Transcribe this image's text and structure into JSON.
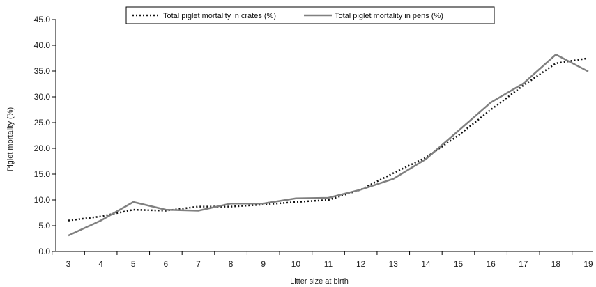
{
  "chart_data": {
    "type": "line",
    "title": "",
    "xlabel": "Litter size at birth",
    "ylabel": "Piglet mortality (%)",
    "ylim": [
      0,
      45
    ],
    "yticks": [
      "0.0",
      "5.0",
      "10.0",
      "15.0",
      "20.0",
      "25.0",
      "30.0",
      "35.0",
      "40.0",
      "45.0"
    ],
    "categories": [
      "3",
      "4",
      "5",
      "6",
      "7",
      "8",
      "9",
      "10",
      "11",
      "12",
      "13",
      "14",
      "15",
      "16",
      "17",
      "18",
      "19"
    ],
    "grid": false,
    "legend_position": "top",
    "series": [
      {
        "name": "Total piglet mortality in crates (%)",
        "style": "dotted",
        "color": "#111111",
        "values": [
          6.0,
          6.8,
          8.1,
          7.9,
          8.7,
          8.7,
          9.1,
          9.6,
          10.0,
          12.0,
          15.2,
          18.2,
          22.5,
          27.5,
          32.2,
          36.5,
          37.5
        ]
      },
      {
        "name": "Total piglet mortality in pens (%)",
        "style": "solid",
        "color": "#808080",
        "values": [
          3.1,
          6.0,
          9.6,
          8.1,
          7.9,
          9.3,
          9.3,
          10.3,
          10.4,
          12.0,
          14.1,
          17.9,
          23.4,
          28.9,
          32.6,
          38.2,
          34.9
        ]
      }
    ]
  }
}
